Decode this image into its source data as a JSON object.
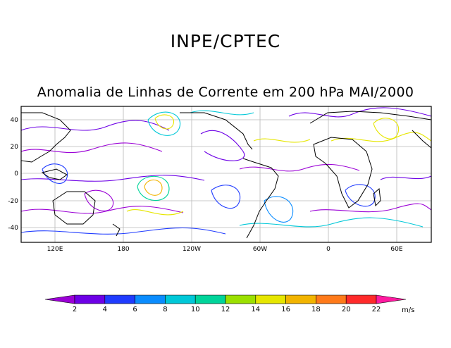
{
  "header": {
    "agency": "INPE/CPTEC",
    "subtitle": "Anomalia de Linhas de Corrente em 200 hPa MAI/2000"
  },
  "map": {
    "lat_ticks": [
      "40",
      "20",
      "0",
      "-20",
      "-40"
    ],
    "lon_ticks": [
      "120E",
      "180",
      "120W",
      "60W",
      "0",
      "60E"
    ]
  },
  "colorbar": {
    "labels": [
      "2",
      "4",
      "6",
      "8",
      "10",
      "12",
      "14",
      "16",
      "18",
      "20",
      "22"
    ],
    "unit": "m/s",
    "colors": [
      "#9b00d6",
      "#6d00e6",
      "#1f3bff",
      "#0a8cff",
      "#00c8d8",
      "#00d49a",
      "#9be000",
      "#e6e600",
      "#f2b400",
      "#ff7a1a",
      "#ff2a2a",
      "#ff1aa0"
    ]
  }
}
